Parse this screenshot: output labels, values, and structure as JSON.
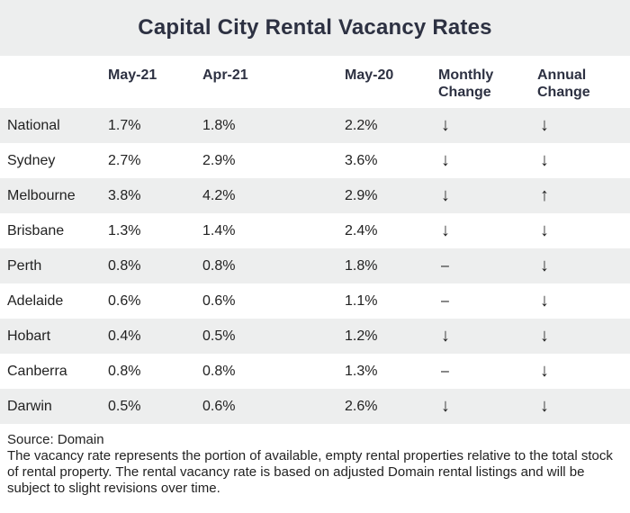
{
  "chart_data": {
    "type": "table",
    "title": "Capital City Rental Vacancy Rates",
    "columns": [
      "May-21",
      "Apr-21",
      "May-20",
      "Monthly\nChange",
      "Annual\nChange"
    ],
    "rows": [
      {
        "city": "National",
        "may21": "1.7%",
        "apr21": "1.8%",
        "may20": "2.2%",
        "monthly": "↓",
        "annual": "↓"
      },
      {
        "city": "Sydney",
        "may21": "2.7%",
        "apr21": "2.9%",
        "may20": "3.6%",
        "monthly": "↓",
        "annual": "↓"
      },
      {
        "city": "Melbourne",
        "may21": "3.8%",
        "apr21": "4.2%",
        "may20": "2.9%",
        "monthly": "↓",
        "annual": "↑"
      },
      {
        "city": "Brisbane",
        "may21": "1.3%",
        "apr21": "1.4%",
        "may20": "2.4%",
        "monthly": "↓",
        "annual": "↓"
      },
      {
        "city": "Perth",
        "may21": "0.8%",
        "apr21": "0.8%",
        "may20": "1.8%",
        "monthly": "–",
        "annual": "↓"
      },
      {
        "city": "Adelaide",
        "may21": "0.6%",
        "apr21": "0.6%",
        "may20": "1.1%",
        "monthly": "–",
        "annual": "↓"
      },
      {
        "city": "Hobart",
        "may21": "0.4%",
        "apr21": "0.5%",
        "may20": "1.2%",
        "monthly": "↓",
        "annual": "↓"
      },
      {
        "city": "Canberra",
        "may21": "0.8%",
        "apr21": "0.8%",
        "may20": "1.3%",
        "monthly": "–",
        "annual": "↓"
      },
      {
        "city": "Darwin",
        "may21": "0.5%",
        "apr21": "0.6%",
        "may20": "2.6%",
        "monthly": "↓",
        "annual": "↓"
      }
    ],
    "source": "Source: Domain",
    "note": "The vacancy rate represents the portion of available, empty rental properties relative to the total stock of rental property. The rental vacancy rate is based on adjusted Domain rental listings and will be subject to slight revisions over time."
  },
  "colors": {
    "title_text": "#2d3142",
    "band": "#edeeee",
    "body_text": "#222222"
  }
}
